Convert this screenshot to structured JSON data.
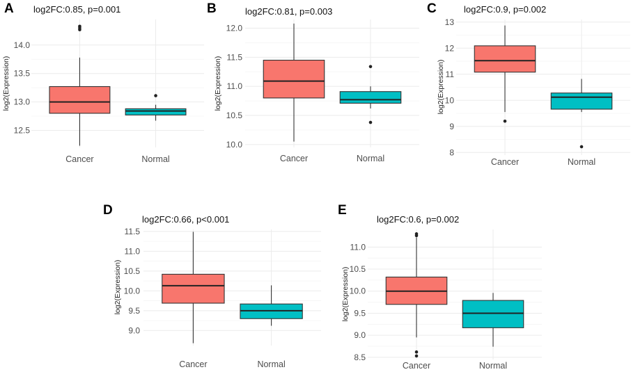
{
  "figure": {
    "panels": [
      "A",
      "B",
      "C",
      "D",
      "E"
    ]
  },
  "chart_data": [
    {
      "panel": "A",
      "type": "boxplot",
      "title": "log2FC:0.85, p=0.001",
      "xlabel": "",
      "ylabel": "log2(Expression)",
      "categories": [
        "Cancer",
        "Normal"
      ],
      "ylim": [
        12.2,
        14.45
      ],
      "yticks": [
        12.5,
        13.0,
        13.5,
        14.0
      ],
      "ytick_labels": [
        "12.5",
        "13.0",
        "13.5",
        "14.0"
      ],
      "boxes": [
        {
          "group": "Cancer",
          "color": "#F8766D",
          "whisker_low": 12.23,
          "q1": 12.8,
          "median": 13.0,
          "q3": 13.27,
          "whisker_high": 13.78,
          "outliers": [
            14.27,
            14.3,
            14.33
          ]
        },
        {
          "group": "Normal",
          "color": "#00BFC4",
          "whisker_low": 12.67,
          "q1": 12.77,
          "median": 12.84,
          "q3": 12.88,
          "whisker_high": 12.95,
          "outliers": [
            13.11
          ]
        }
      ]
    },
    {
      "panel": "B",
      "type": "boxplot",
      "title": "log2FC:0.81, p=0.003",
      "xlabel": "",
      "ylabel": "log2(Expression)",
      "categories": [
        "Cancer",
        "Normal"
      ],
      "ylim": [
        9.95,
        12.15
      ],
      "yticks": [
        10.0,
        10.5,
        11.0,
        11.5,
        12.0
      ],
      "ytick_labels": [
        "10.0",
        "10.5",
        "11.0",
        "11.5",
        "12.0"
      ],
      "boxes": [
        {
          "group": "Cancer",
          "color": "#F8766D",
          "whisker_low": 10.05,
          "q1": 10.8,
          "median": 11.09,
          "q3": 11.45,
          "whisker_high": 12.08,
          "outliers": []
        },
        {
          "group": "Normal",
          "color": "#00BFC4",
          "whisker_low": 10.62,
          "q1": 10.71,
          "median": 10.77,
          "q3": 10.91,
          "whisker_high": 11.0,
          "outliers": [
            10.38,
            11.34
          ]
        }
      ]
    },
    {
      "panel": "C",
      "type": "boxplot",
      "title": "log2FC:0.9, p=0.002",
      "xlabel": "",
      "ylabel": "log2(Expression)",
      "categories": [
        "Cancer",
        "Normal"
      ],
      "ylim": [
        7.9,
        13.1
      ],
      "yticks": [
        8,
        9,
        10,
        11,
        12,
        13
      ],
      "ytick_labels": [
        "8",
        "9",
        "10",
        "11",
        "12",
        "13"
      ],
      "boxes": [
        {
          "group": "Cancer",
          "color": "#F8766D",
          "whisker_low": 9.55,
          "q1": 11.08,
          "median": 11.52,
          "q3": 12.09,
          "whisker_high": 12.87,
          "outliers": [
            9.2
          ]
        },
        {
          "group": "Normal",
          "color": "#00BFC4",
          "whisker_low": 9.55,
          "q1": 9.66,
          "median": 10.12,
          "q3": 10.28,
          "whisker_high": 10.82,
          "outliers": [
            8.22
          ]
        }
      ]
    },
    {
      "panel": "D",
      "type": "boxplot",
      "title": "log2FC:0.66, p<0.001",
      "xlabel": "",
      "ylabel": "log2(Expression)",
      "categories": [
        "Cancer",
        "Normal"
      ],
      "ylim": [
        8.62,
        11.55
      ],
      "yticks": [
        9.0,
        9.5,
        10.0,
        10.5,
        11.0,
        11.5
      ],
      "ytick_labels": [
        "9.0",
        "9.5",
        "10.0",
        "10.5",
        "11.0",
        "11.5"
      ],
      "boxes": [
        {
          "group": "Cancer",
          "color": "#F8766D",
          "whisker_low": 8.68,
          "q1": 9.69,
          "median": 10.13,
          "q3": 10.42,
          "whisker_high": 11.49,
          "outliers": []
        },
        {
          "group": "Normal",
          "color": "#00BFC4",
          "whisker_low": 9.12,
          "q1": 9.3,
          "median": 9.5,
          "q3": 9.67,
          "whisker_high": 10.14,
          "outliers": []
        }
      ]
    },
    {
      "panel": "E",
      "type": "boxplot",
      "title": "log2FC:0.6, p=0.002",
      "xlabel": "",
      "ylabel": "log2(Expression)",
      "categories": [
        "Cancer",
        "Normal"
      ],
      "ylim": [
        8.45,
        11.4
      ],
      "yticks": [
        8.5,
        9.0,
        9.5,
        10.0,
        10.5,
        11.0
      ],
      "ytick_labels": [
        "8.5",
        "9.0",
        "9.5",
        "10.0",
        "10.5",
        "11.0"
      ],
      "boxes": [
        {
          "group": "Cancer",
          "color": "#F8766D",
          "whisker_low": 8.95,
          "q1": 9.7,
          "median": 10.0,
          "q3": 10.32,
          "whisker_high": 11.22,
          "outliers": [
            8.53,
            8.62,
            11.26,
            11.3
          ]
        },
        {
          "group": "Normal",
          "color": "#00BFC4",
          "whisker_low": 8.74,
          "q1": 9.17,
          "median": 9.5,
          "q3": 9.79,
          "whisker_high": 9.96,
          "outliers": []
        }
      ]
    }
  ]
}
